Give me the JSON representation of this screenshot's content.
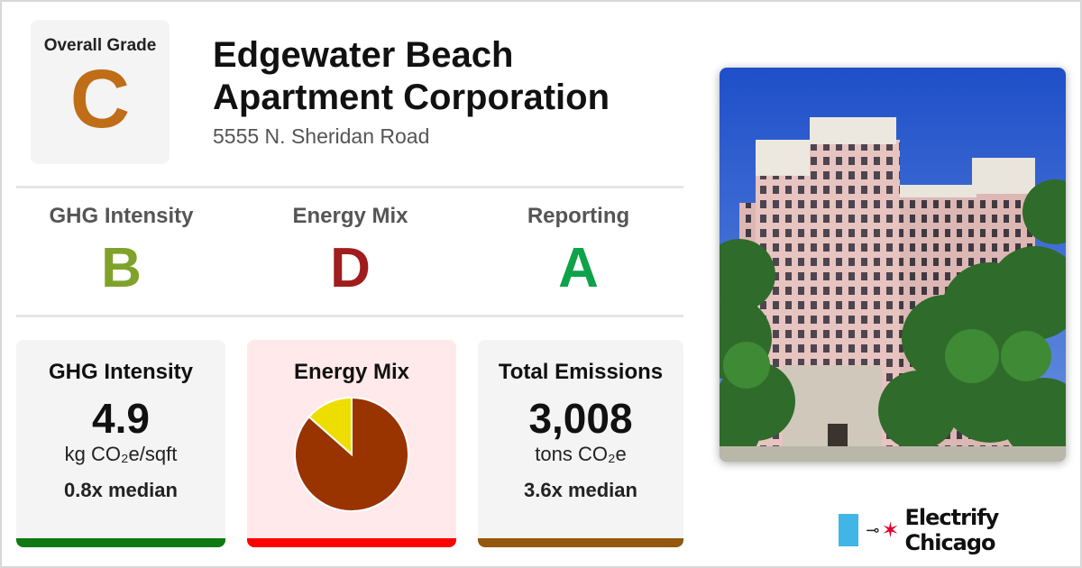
{
  "overall": {
    "label": "Overall Grade",
    "grade": "C",
    "color": "#bf6d16"
  },
  "building": {
    "name_line1": "Edgewater Beach",
    "name_line2": "Apartment Corporation",
    "address": "5555 N. Sheridan Road"
  },
  "subgrades": [
    {
      "label": "GHG Intensity",
      "grade": "B",
      "color": "#7fa32a"
    },
    {
      "label": "Energy Mix",
      "grade": "D",
      "color": "#a01d1d"
    },
    {
      "label": "Reporting",
      "grade": "A",
      "color": "#0ea34a"
    }
  ],
  "cards": {
    "ghg": {
      "title": "GHG Intensity",
      "value": "4.9",
      "unit": "kg CO₂e/sqft",
      "median": "0.8x median",
      "bar_color": "#0f7a12",
      "bg": "#f4f4f4"
    },
    "energy": {
      "title": "Energy Mix",
      "bar_color": "#ff0000",
      "bg": "#ffe9ea"
    },
    "total": {
      "title": "Total Emissions",
      "value": "3,008",
      "unit": "tons CO₂e",
      "median": "3.6x median",
      "bar_color": "#93570d",
      "bg": "#f4f4f4"
    }
  },
  "chart_data": {
    "type": "pie",
    "slices": [
      {
        "share": 0.865,
        "color": "#993300"
      },
      {
        "share": 0.135,
        "color": "#eedd00"
      }
    ]
  },
  "brand": {
    "name": "Electrify Chicago",
    "block_color": "#41b6e6",
    "star_color": "#e4002b"
  }
}
